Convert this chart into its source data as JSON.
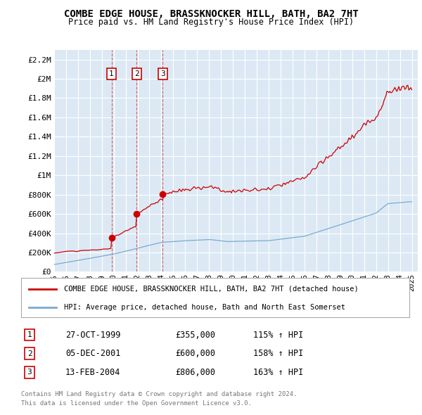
{
  "title": "COMBE EDGE HOUSE, BRASSKNOCKER HILL, BATH, BA2 7HT",
  "subtitle": "Price paid vs. HM Land Registry's House Price Index (HPI)",
  "background_color": "#dce9f5",
  "plot_bg_color": "#dce9f5",
  "ylim": [
    0,
    2300000
  ],
  "yticks": [
    0,
    200000,
    400000,
    600000,
    800000,
    1000000,
    1200000,
    1400000,
    1600000,
    1800000,
    2000000,
    2200000
  ],
  "ytick_labels": [
    "£0",
    "£200K",
    "£400K",
    "£600K",
    "£800K",
    "£1M",
    "£1.2M",
    "£1.4M",
    "£1.6M",
    "£1.8M",
    "£2M",
    "£2.2M"
  ],
  "xtick_years": [
    1995,
    1996,
    1997,
    1998,
    1999,
    2000,
    2001,
    2002,
    2003,
    2004,
    2005,
    2006,
    2007,
    2008,
    2009,
    2010,
    2011,
    2012,
    2013,
    2014,
    2015,
    2016,
    2017,
    2018,
    2019,
    2020,
    2021,
    2022,
    2023,
    2024,
    2025
  ],
  "red_line_color": "#cc0000",
  "blue_line_color": "#7aaad0",
  "sale_dates": [
    1999.82,
    2001.92,
    2004.12
  ],
  "sale_prices": [
    355000,
    600000,
    806000
  ],
  "sale_labels": [
    "1",
    "2",
    "3"
  ],
  "sale_date_strs": [
    "27-OCT-1999",
    "05-DEC-2001",
    "13-FEB-2004"
  ],
  "sale_price_strs": [
    "£355,000",
    "£600,000",
    "£806,000"
  ],
  "sale_hpi_strs": [
    "115% ↑ HPI",
    "158% ↑ HPI",
    "163% ↑ HPI"
  ],
  "legend_red_label": "COMBE EDGE HOUSE, BRASSKNOCKER HILL, BATH, BA2 7HT (detached house)",
  "legend_blue_label": "HPI: Average price, detached house, Bath and North East Somerset",
  "footer_line1": "Contains HM Land Registry data © Crown copyright and database right 2024.",
  "footer_line2": "This data is licensed under the Open Government Licence v3.0."
}
